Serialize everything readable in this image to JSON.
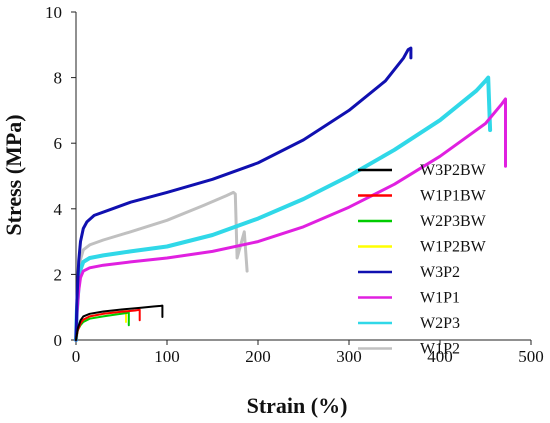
{
  "chart_data": {
    "type": "line",
    "title": "",
    "xlabel": "Strain (%)",
    "ylabel": "Stress (MPa)",
    "xlim": [
      0,
      500
    ],
    "ylim": [
      0,
      10
    ],
    "xticks": [
      "0",
      "100",
      "200",
      "300",
      "400",
      "500"
    ],
    "yticks": [
      "0",
      "2",
      "4",
      "6",
      "8",
      "10"
    ],
    "grid": false,
    "legend_position": "right",
    "series": [
      {
        "name": "W3P2BW",
        "color": "#000000",
        "width": 2,
        "x": [
          0,
          2,
          5,
          8,
          15,
          30,
          50,
          70,
          85,
          93,
          95,
          95
        ],
        "y": [
          0,
          0.35,
          0.6,
          0.72,
          0.8,
          0.87,
          0.93,
          0.98,
          1.02,
          1.04,
          1.05,
          0.7
        ]
      },
      {
        "name": "W1P1BW",
        "color": "#ff0000",
        "width": 2,
        "x": [
          0,
          2,
          5,
          8,
          15,
          30,
          50,
          65,
          70,
          70
        ],
        "y": [
          0,
          0.3,
          0.5,
          0.62,
          0.72,
          0.8,
          0.86,
          0.9,
          0.92,
          0.6
        ]
      },
      {
        "name": "W2P3BW",
        "color": "#00cc00",
        "width": 2,
        "x": [
          0,
          2,
          5,
          8,
          15,
          30,
          45,
          55,
          58,
          58
        ],
        "y": [
          0,
          0.3,
          0.45,
          0.55,
          0.65,
          0.72,
          0.78,
          0.82,
          0.84,
          0.45
        ]
      },
      {
        "name": "W1P2BW",
        "color": "#ffff00",
        "width": 2,
        "x": [
          0,
          2,
          5,
          8,
          15,
          30,
          50,
          55,
          55
        ],
        "y": [
          0,
          0.3,
          0.5,
          0.62,
          0.72,
          0.8,
          0.86,
          0.88,
          0.55
        ]
      },
      {
        "name": "W3P2",
        "color": "#1010b0",
        "width": 3,
        "x": [
          0,
          1,
          3,
          5,
          8,
          12,
          20,
          40,
          60,
          100,
          150,
          200,
          250,
          300,
          340,
          360,
          365,
          368,
          368
        ],
        "y": [
          0,
          1.2,
          2.4,
          3.0,
          3.4,
          3.6,
          3.8,
          4.0,
          4.2,
          4.5,
          4.9,
          5.4,
          6.1,
          7.0,
          7.9,
          8.6,
          8.85,
          8.9,
          8.6
        ]
      },
      {
        "name": "W1P1",
        "color": "#e020e0",
        "width": 3,
        "x": [
          0,
          1,
          3,
          5,
          8,
          15,
          30,
          60,
          100,
          150,
          200,
          250,
          300,
          350,
          400,
          450,
          468,
          472,
          472
        ],
        "y": [
          0,
          0.8,
          1.5,
          1.9,
          2.1,
          2.2,
          2.28,
          2.38,
          2.5,
          2.7,
          3.0,
          3.45,
          4.05,
          4.75,
          5.6,
          6.6,
          7.2,
          7.35,
          5.3
        ]
      },
      {
        "name": "W2P3",
        "color": "#30d8e8",
        "width": 4,
        "x": [
          0,
          1,
          3,
          5,
          8,
          15,
          30,
          60,
          100,
          150,
          200,
          250,
          300,
          350,
          400,
          440,
          450,
          453,
          455
        ],
        "y": [
          0,
          0.9,
          1.7,
          2.15,
          2.38,
          2.5,
          2.58,
          2.7,
          2.85,
          3.2,
          3.7,
          4.3,
          5.0,
          5.8,
          6.7,
          7.6,
          7.9,
          8.0,
          6.4
        ]
      },
      {
        "name": "W1P2",
        "color": "#c0c0c0",
        "width": 3,
        "x": [
          0,
          1,
          3,
          5,
          8,
          15,
          30,
          60,
          100,
          140,
          165,
          173,
          175,
          177,
          185,
          188
        ],
        "y": [
          0,
          1.0,
          1.9,
          2.45,
          2.75,
          2.9,
          3.05,
          3.3,
          3.65,
          4.1,
          4.4,
          4.5,
          4.45,
          2.5,
          3.3,
          2.1
        ]
      }
    ]
  }
}
